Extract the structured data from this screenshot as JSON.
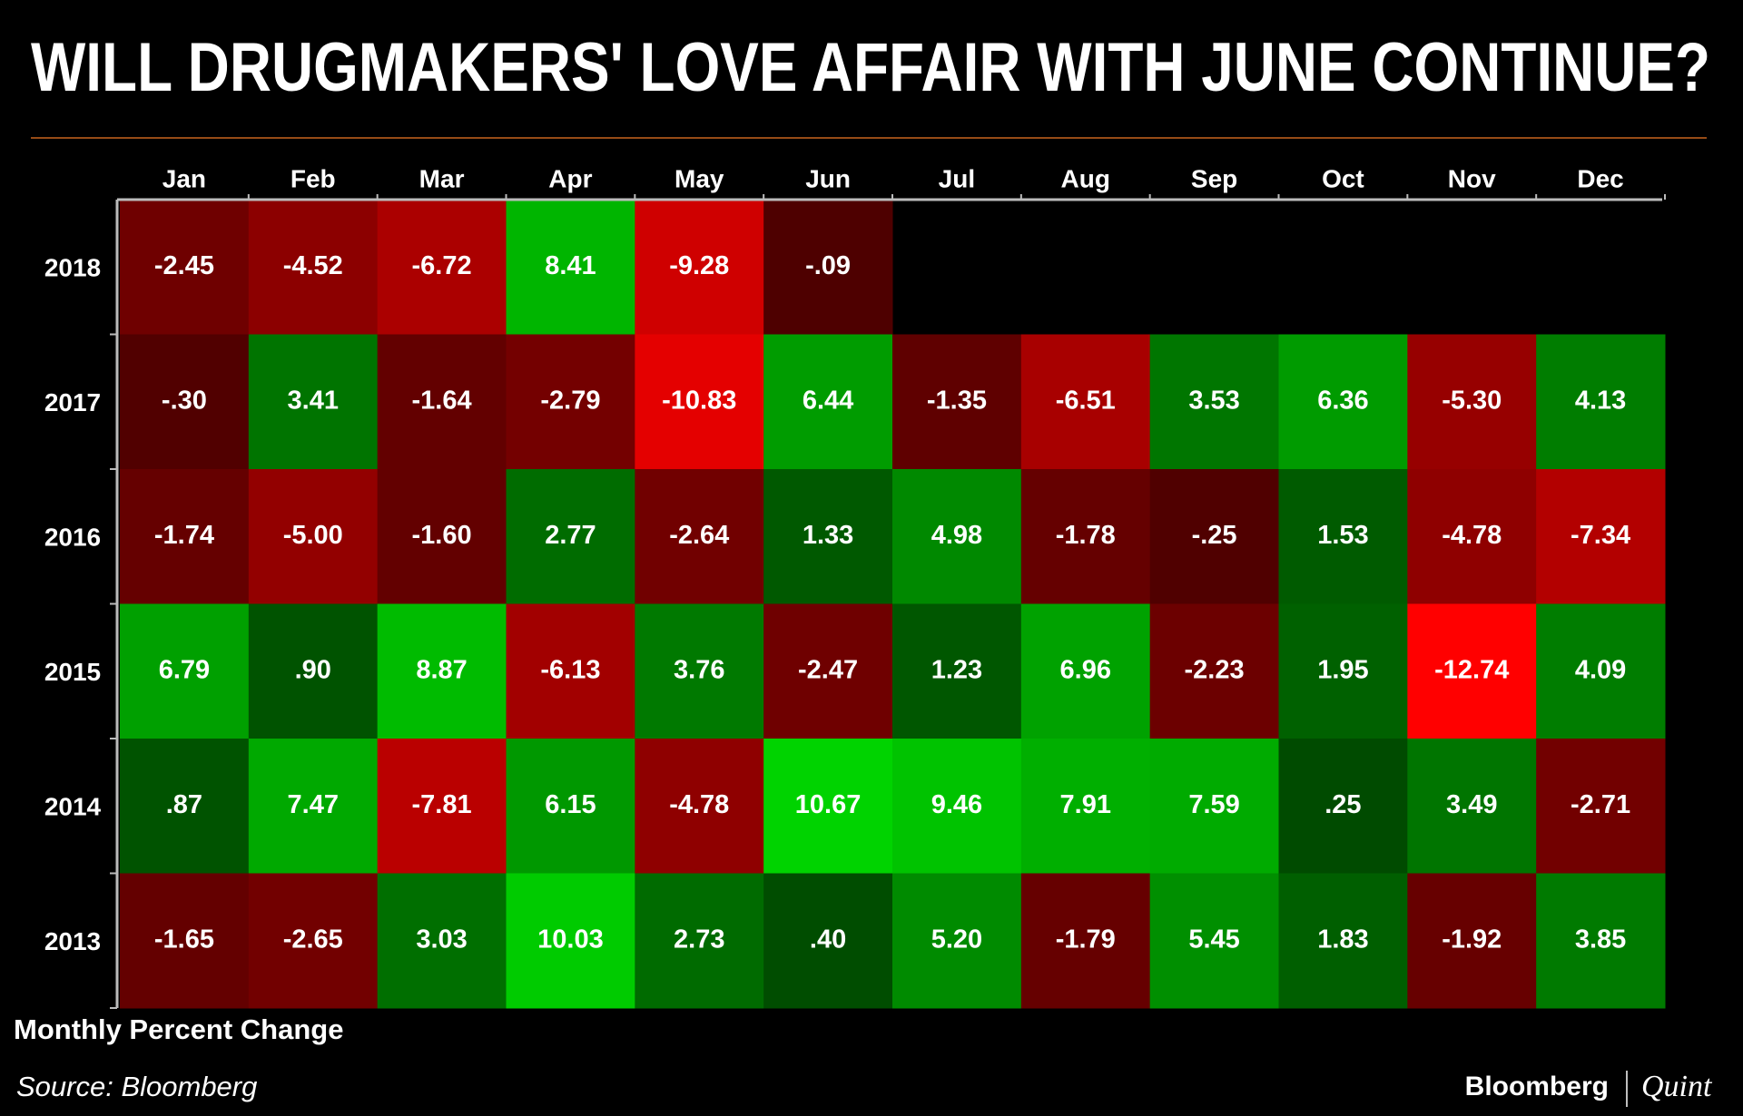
{
  "chart_data": {
    "type": "heatmap",
    "title": "WILL DRUGMAKERS' LOVE AFFAIR WITH JUNE CONTINUE?",
    "subtitle": "Monthly Percent Change",
    "source": "Source: Bloomberg",
    "brand": [
      "Bloomberg",
      "Quint"
    ],
    "categories": [
      "Jan",
      "Feb",
      "Mar",
      "Apr",
      "May",
      "Jun",
      "Jul",
      "Aug",
      "Sep",
      "Oct",
      "Nov",
      "Dec"
    ],
    "rows": [
      "2018",
      "2017",
      "2016",
      "2015",
      "2014",
      "2013"
    ],
    "values": [
      [
        -2.45,
        -4.52,
        -6.72,
        8.41,
        -9.28,
        -0.09,
        null,
        null,
        null,
        null,
        null,
        null
      ],
      [
        -0.3,
        3.41,
        -1.64,
        -2.79,
        -10.83,
        6.44,
        -1.35,
        -6.51,
        3.53,
        6.36,
        -5.3,
        4.13
      ],
      [
        -1.74,
        -5.0,
        -1.6,
        2.77,
        -2.64,
        1.33,
        4.98,
        -1.78,
        -0.25,
        1.53,
        -4.78,
        -7.34
      ],
      [
        6.79,
        0.9,
        8.87,
        -6.13,
        3.76,
        -2.47,
        1.23,
        6.96,
        -2.23,
        1.95,
        -12.74,
        4.09
      ],
      [
        0.87,
        7.47,
        -7.81,
        6.15,
        -4.78,
        10.67,
        9.46,
        7.91,
        7.59,
        0.25,
        3.49,
        -2.71
      ],
      [
        -1.65,
        -2.65,
        3.03,
        10.03,
        2.73,
        0.4,
        5.2,
        -1.79,
        5.45,
        1.83,
        -1.92,
        3.85
      ]
    ],
    "value_labels": [
      [
        "-2.45",
        "-4.52",
        "-6.72",
        "8.41",
        "-9.28",
        "-.09",
        null,
        null,
        null,
        null,
        null,
        null
      ],
      [
        "-.30",
        "3.41",
        "-1.64",
        "-2.79",
        "-10.83",
        "6.44",
        "-1.35",
        "-6.51",
        "3.53",
        "6.36",
        "-5.30",
        "4.13"
      ],
      [
        "-1.74",
        "-5.00",
        "-1.60",
        "2.77",
        "-2.64",
        "1.33",
        "4.98",
        "-1.78",
        "-.25",
        "1.53",
        "-4.78",
        "-7.34"
      ],
      [
        "6.79",
        ".90",
        "8.87",
        "-6.13",
        "3.76",
        "-2.47",
        "1.23",
        "6.96",
        "-2.23",
        "1.95",
        "-12.74",
        "4.09"
      ],
      [
        ".87",
        "7.47",
        "-7.81",
        "6.15",
        "-4.78",
        "10.67",
        "9.46",
        "7.91",
        "7.59",
        ".25",
        "3.49",
        "-2.71"
      ],
      [
        "-1.65",
        "-2.65",
        "3.03",
        "10.03",
        "2.73",
        ".40",
        "5.20",
        "-1.79",
        "5.45",
        "1.83",
        "-1.92",
        "3.85"
      ]
    ],
    "negative_color": "#ff0000",
    "positive_color": "#00ee00"
  }
}
